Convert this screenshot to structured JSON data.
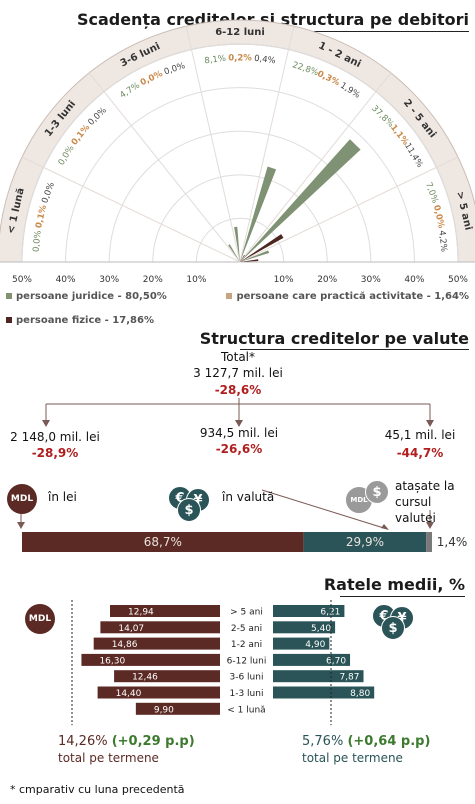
{
  "radar": {
    "title": "Scadența creditelor și structura pe debitori",
    "buckets": [
      {
        "label": "< 1 lună",
        "v": [
          "0,0%",
          "0,1%",
          "0,0%"
        ]
      },
      {
        "label": "1-3 luni",
        "v": [
          "0,0%",
          "0,1%",
          "0,0%"
        ]
      },
      {
        "label": "3-6 luni",
        "v": [
          "4,7%",
          "0,0%",
          "0,0%"
        ]
      },
      {
        "label": "6-12 luni",
        "v": [
          "8,1%",
          "0,2%",
          "0,4%"
        ]
      },
      {
        "label": "1 - 2 ani",
        "v": [
          "22,8%",
          "0,3%",
          "1,9%"
        ]
      },
      {
        "label": "2 - 5 ani",
        "v": [
          "37,8%",
          "1,1%",
          "11,4%"
        ]
      },
      {
        "label": "> 5 ani",
        "v": [
          "7,0%",
          "0,0%",
          "4,2%"
        ]
      }
    ],
    "scale_left": [
      "50%",
      "40%",
      "30%",
      "20%",
      "10%"
    ],
    "scale_right": [
      "10%",
      "20%",
      "30%",
      "40%",
      "50%"
    ],
    "legend": {
      "juridice": "persoane juridice - 80,50%",
      "practica": "persoane care practică activitate - 1,64%",
      "fizice": "persoane fizice - 17,86%"
    },
    "colors": {
      "juridice": "#7f9274",
      "practica": "#c7a480",
      "fizice": "#4e2620"
    }
  },
  "chart_data": [
    {
      "type": "bar",
      "title": "Scadența creditelor și structura pe debitori",
      "categories": [
        "< 1 lună",
        "1-3 luni",
        "3-6 luni",
        "6-12 luni",
        "1 - 2 ani",
        "2 - 5 ani",
        "> 5 ani"
      ],
      "series": [
        {
          "name": "persoane juridice - 80,50%",
          "values": [
            0.0,
            0.0,
            4.7,
            8.1,
            22.8,
            37.8,
            7.0
          ]
        },
        {
          "name": "persoane care practică activitate - 1,64%",
          "values": [
            0.1,
            0.1,
            0.0,
            0.2,
            0.3,
            1.1,
            0.0
          ]
        },
        {
          "name": "persoane fizice - 17,86%",
          "values": [
            0.0,
            0.0,
            0.0,
            0.4,
            1.9,
            11.4,
            4.2
          ]
        }
      ],
      "ylim": [
        0,
        50
      ]
    },
    {
      "type": "bar",
      "title": "Structura creditelor pe valute",
      "categories": [
        "în lei",
        "în valută",
        "atașate la cursul valutei"
      ],
      "values": [
        68.7,
        29.9,
        1.4
      ]
    },
    {
      "type": "bar",
      "title": "Ratele medii, %",
      "categories": [
        "> 5 ani",
        "2-5 ani",
        "1-2 ani",
        "6-12 luni",
        "3-6 luni",
        "1-3 luni",
        "< 1 lună"
      ],
      "series": [
        {
          "name": "MDL",
          "values": [
            12.94,
            14.07,
            14.86,
            16.3,
            12.46,
            14.4,
            9.9
          ]
        },
        {
          "name": "valută",
          "values": [
            6.21,
            5.4,
            4.9,
            6.7,
            7.87,
            8.8,
            null
          ]
        }
      ],
      "xlim": [
        0,
        20
      ]
    }
  ],
  "currency": {
    "title": "Structura creditelor pe valute",
    "total_label": "Total*",
    "total_value": "3 127,7 mil. lei",
    "total_change": "-28,6%",
    "items": [
      {
        "value": "2 148,0 mil. lei",
        "change": "-28,9%",
        "label": "în lei",
        "share": "68,7%",
        "color": "#5b2a24"
      },
      {
        "value": "934,5 mil. lei",
        "change": "-26,6%",
        "label": "în valută",
        "share": "29,9%",
        "color": "#2a5457"
      },
      {
        "value": "45,1 mil. lei",
        "change": "-44,7%",
        "label": "atașate la cursul valutei",
        "share": "1,4%",
        "color": "#7a7a7a"
      }
    ],
    "mdl_badge": "MDL"
  },
  "rates": {
    "title": "Ratele medii, %",
    "mdl_badge": "MDL",
    "rows": [
      {
        "label": "> 5 ani",
        "mdl": "12,94",
        "fx": "6,21"
      },
      {
        "label": "2-5 ani",
        "mdl": "14,07",
        "fx": "5,40"
      },
      {
        "label": "1-2 ani",
        "mdl": "14,86",
        "fx": "4,90"
      },
      {
        "label": "6-12 luni",
        "mdl": "16,30",
        "fx": "6,70"
      },
      {
        "label": "3-6 luni",
        "mdl": "12,46",
        "fx": "7,87"
      },
      {
        "label": "1-3 luni",
        "mdl": "14,40",
        "fx": "8,80"
      },
      {
        "label": "< 1 lună",
        "mdl": "9,90",
        "fx": ""
      }
    ],
    "mdl_total": "14,26%",
    "mdl_change": "(+0,29 p.p)",
    "fx_total": "5,76%",
    "fx_change": "(+0,64 p.p)",
    "total_note": "total pe termene",
    "colors": {
      "mdl": "#5b2a24",
      "fx": "#2a5457",
      "change": "#3c7a2e"
    }
  },
  "footnote": "* cmparativ cu luna precedentă"
}
